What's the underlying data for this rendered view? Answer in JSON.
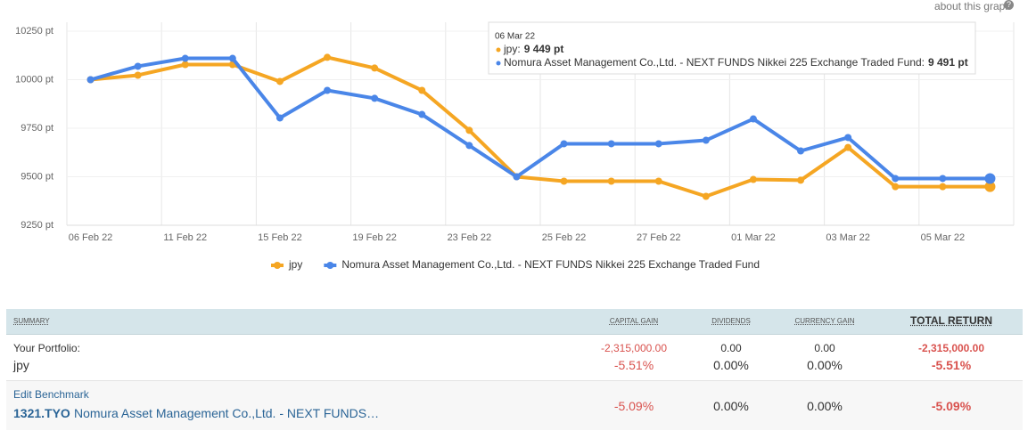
{
  "about_link": "about this graph",
  "chart_data": {
    "type": "line",
    "categories": [
      "06 Feb 22",
      null,
      "11 Feb 22",
      null,
      "15 Feb 22",
      null,
      "19 Feb 22",
      null,
      "23 Feb 22",
      null,
      "25 Feb 22",
      null,
      "27 Feb 22",
      null,
      "01 Mar 22",
      null,
      "03 Mar 22",
      null,
      "05 Mar 22",
      null
    ],
    "series": [
      {
        "name": "jpy",
        "color": "#f5a623",
        "values": [
          10000,
          10023,
          10078,
          10078,
          9991,
          10115,
          10060,
          9945,
          9739,
          9500,
          9477,
          9477,
          9477,
          9399,
          9486,
          9482,
          9651,
          9449,
          9449,
          9449
        ]
      },
      {
        "name": "Nomura Asset Management Co.,Ltd. - NEXT FUNDS Nikkei 225 Exchange Traded Fund",
        "color": "#4a86e8",
        "values": [
          10000,
          10069,
          10110,
          10110,
          9803,
          9945,
          9904,
          9821,
          9661,
          9500,
          9670,
          9670,
          9670,
          9688,
          9798,
          9633,
          9702,
          9491,
          9491,
          9491
        ]
      }
    ],
    "ylim": [
      9250,
      10250
    ],
    "yticks": [
      {
        "value": 9250,
        "label": "9250 pt"
      },
      {
        "value": 9500,
        "label": "9500 pt"
      },
      {
        "value": 9750,
        "label": "9750 pt"
      },
      {
        "value": 10000,
        "label": "10000 pt"
      },
      {
        "value": 10250,
        "label": "10250 pt"
      }
    ],
    "legend": "bottom",
    "tooltip": {
      "title": "06 Mar 22",
      "entries": [
        {
          "label": "jpy:",
          "value": "9 449 pt"
        },
        {
          "label": "Nomura Asset Management Co.,Ltd. - NEXT FUNDS Nikkei 225 Exchange Traded Fund:",
          "value": "9 491 pt"
        }
      ]
    }
  },
  "summary_table": {
    "headers": [
      "SUMMARY",
      "CAPITAL GAIN",
      "DIVIDENDS",
      "CURRENCY GAIN",
      "TOTAL RETURN"
    ],
    "portfolio": {
      "label": "Your Portfolio:",
      "name": "jpy",
      "cells": [
        [
          "-2,315,000.00",
          "-5.51%"
        ],
        [
          "0.00",
          "0.00%"
        ],
        [
          "0.00",
          "0.00%"
        ],
        [
          "-2,315,000.00",
          "-5.51%"
        ]
      ]
    },
    "benchmark": {
      "link": "Edit Benchmark",
      "ticker": "1321.TYO",
      "name": "Nomura Asset Management Co.,Ltd. - NEXT FUNDS…",
      "cells": [
        "-5.09%",
        "0.00%",
        "0.00%",
        "-5.09%"
      ]
    }
  }
}
